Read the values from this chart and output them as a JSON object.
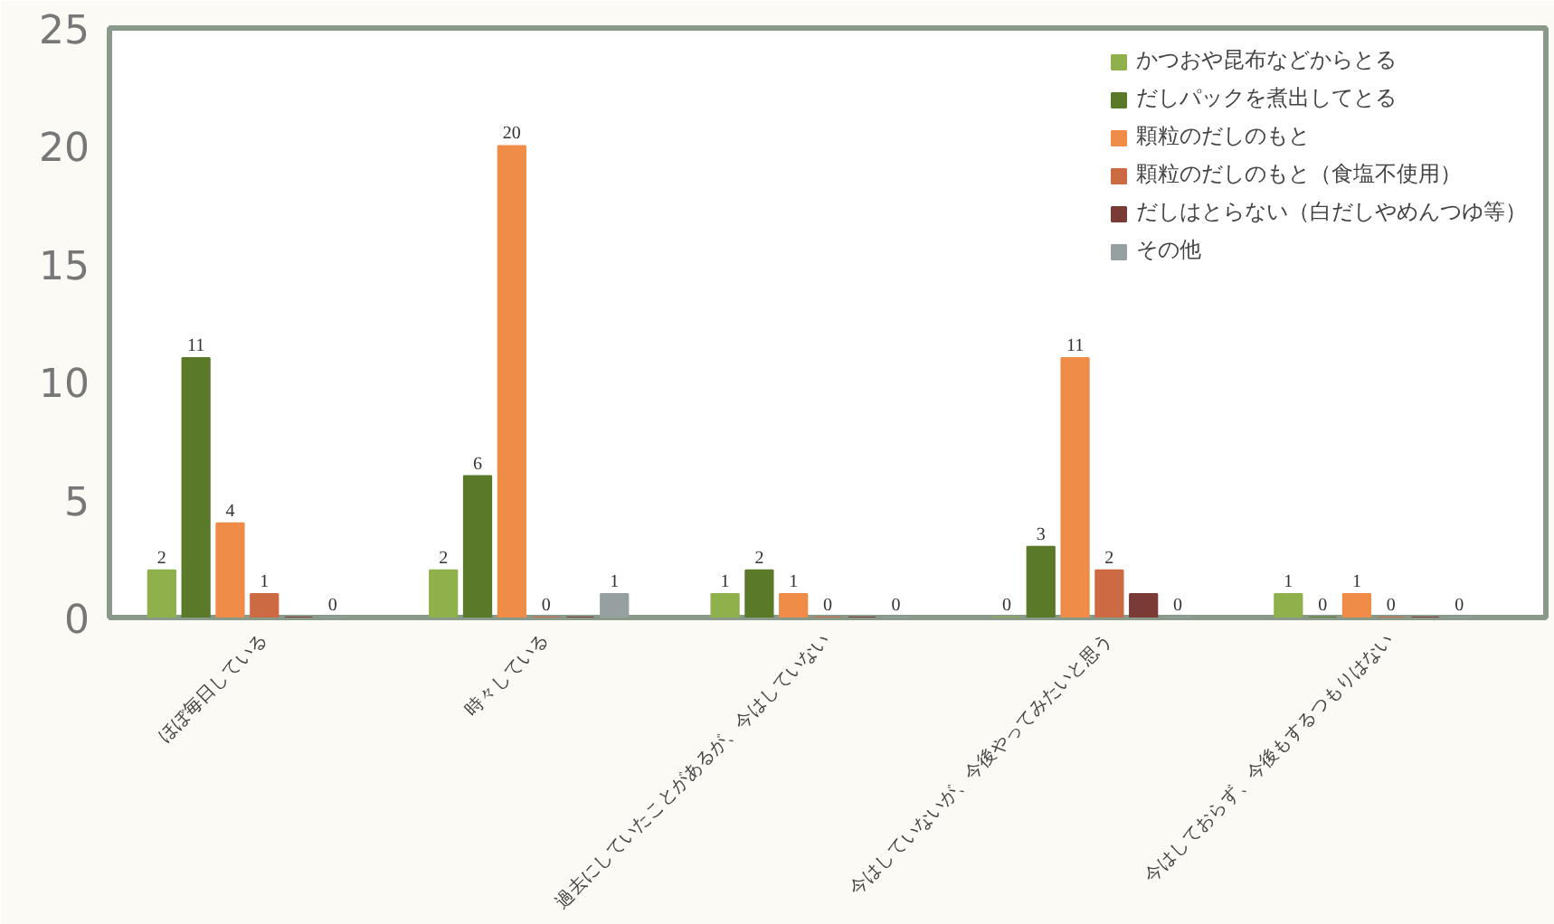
{
  "chart_data": {
    "type": "bar",
    "categories": [
      "ほぼ毎日している",
      "時々している",
      "過去にしていたことがあるが、今はしていない",
      "今はしていないが、今後やってみたいと思う",
      "今はしておらず、今後もするつもりはない"
    ],
    "series": [
      {
        "name": "かつおや昆布などからとる",
        "color": "#8fb04a",
        "values": [
          2,
          2,
          1,
          0,
          1
        ],
        "value_labels": [
          "2",
          "2",
          "1",
          "0",
          "1"
        ]
      },
      {
        "name": "だしパックを煮出してとる",
        "color": "#5a7a2a",
        "values": [
          11,
          6,
          2,
          3,
          0
        ],
        "value_labels": [
          "11",
          "6",
          "2",
          "3",
          "0"
        ]
      },
      {
        "name": "顆粒のだしのもと",
        "color": "#ee8c48",
        "values": [
          4,
          20,
          1,
          11,
          1
        ],
        "value_labels": [
          "4",
          "20",
          "1",
          "11",
          "1"
        ]
      },
      {
        "name": "顆粒のだしのもと（食塩不使用）",
        "color": "#cc6a44",
        "values": [
          1,
          0,
          0,
          2,
          0
        ],
        "value_labels": [
          "1",
          "0",
          "0",
          "2",
          "0"
        ]
      },
      {
        "name": "だしはとらない（白だしやめんつゆ等）",
        "color": "#7a3a36",
        "values": [
          0,
          0,
          0,
          1,
          0
        ],
        "value_labels": [
          null,
          null,
          null,
          null,
          null
        ]
      },
      {
        "name": "その他",
        "color": "#96a0a0",
        "values": [
          0,
          1,
          0,
          0,
          0
        ],
        "value_labels": [
          "0",
          "1",
          "0",
          "0",
          "0"
        ]
      }
    ],
    "ylim": [
      0,
      25
    ],
    "yticks": [
      0,
      5,
      10,
      15,
      20,
      25
    ],
    "grid": false,
    "legend": "top right"
  }
}
